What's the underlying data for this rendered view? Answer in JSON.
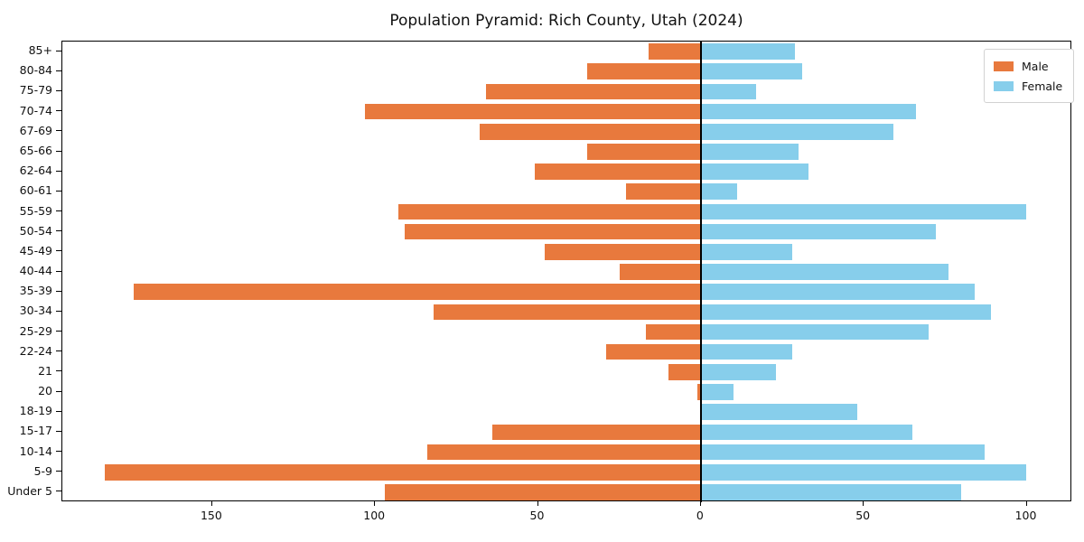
{
  "chart_data": {
    "type": "bar",
    "subtype": "population_pyramid",
    "title": "Population Pyramid: Rich County, Utah (2024)",
    "categories": [
      "85+",
      "80-84",
      "75-79",
      "70-74",
      "67-69",
      "65-66",
      "62-64",
      "60-61",
      "55-59",
      "50-54",
      "45-49",
      "40-44",
      "35-39",
      "30-34",
      "25-29",
      "22-24",
      "21",
      "20",
      "18-19",
      "15-17",
      "10-14",
      "5-9",
      "Under 5"
    ],
    "series": [
      {
        "name": "Male",
        "side": "left",
        "color": "#e8793d",
        "values": [
          16,
          35,
          66,
          103,
          68,
          35,
          51,
          23,
          93,
          91,
          48,
          25,
          174,
          82,
          17,
          29,
          10,
          1,
          0,
          64,
          84,
          183,
          97
        ]
      },
      {
        "name": "Female",
        "side": "right",
        "color": "#87ceeb",
        "values": [
          29,
          31,
          17,
          66,
          59,
          30,
          33,
          11,
          100,
          72,
          28,
          76,
          84,
          89,
          70,
          28,
          23,
          10,
          48,
          65,
          87,
          100,
          80
        ]
      }
    ],
    "x_axis": {
      "ticks": [
        -150,
        -100,
        -50,
        0,
        50,
        100
      ],
      "tick_labels": [
        "150",
        "100",
        "50",
        "0",
        "50",
        "100"
      ],
      "xlim": [
        -196,
        114
      ]
    },
    "y_axis": {
      "order": "oldest_top"
    },
    "legend": {
      "position": "upper right",
      "entries": [
        "Male",
        "Female"
      ]
    },
    "grid": false,
    "zero_line_color": "#000000",
    "frame_color": "#000000",
    "background": "#ffffff"
  }
}
